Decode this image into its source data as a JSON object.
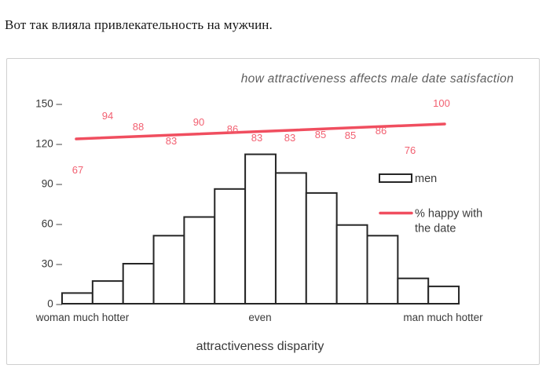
{
  "caption": {
    "text": "Вот так влияла привлекательность на мужчин."
  },
  "chart": {
    "title": "how attractiveness affects male date satisfaction",
    "legend": {
      "bar_label": "men",
      "line_label_line1": "% happy with",
      "line_label_line2": "the date"
    },
    "x_axis": {
      "left_label": "woman much hotter",
      "center_label": "even",
      "right_label": "man much hotter",
      "title": "attractiveness disparity"
    }
  },
  "chart_data": {
    "type": "bar",
    "title": "how attractiveness affects male date satisfaction",
    "xlabel": "attractiveness disparity",
    "ylabel": "",
    "x_axis_annotations": [
      "woman much hotter",
      "even",
      "man much hotter"
    ],
    "yticks": [
      0,
      30,
      60,
      90,
      120,
      150
    ],
    "ylim": [
      0,
      150
    ],
    "bar_count": 13,
    "grid": false,
    "legend_position": "right-middle",
    "series": [
      {
        "name": "men",
        "type": "bar",
        "values": [
          8,
          17,
          30,
          51,
          65,
          86,
          112,
          98,
          83,
          59,
          51,
          19,
          13
        ],
        "fill": "#ffffff",
        "stroke": "#262626"
      },
      {
        "name": "% happy with the date",
        "type": "line",
        "style": "straight-trend-line",
        "values": [
          67,
          94,
          88,
          83,
          90,
          86,
          83,
          83,
          85,
          85,
          86,
          76,
          100
        ],
        "color": "#f04e5f"
      }
    ]
  }
}
